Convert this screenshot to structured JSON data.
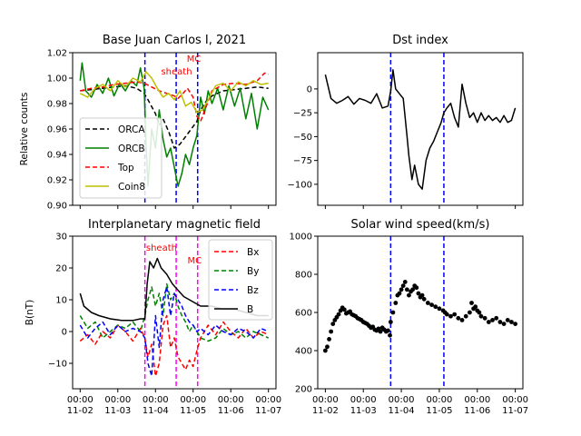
{
  "figure": {
    "x_tick_labels": [
      [
        "00:00",
        "11-02"
      ],
      [
        "00:00",
        "11-03"
      ],
      [
        "00:00",
        "11-04"
      ],
      [
        "00:00",
        "11-05"
      ],
      [
        "00:00",
        "11-06"
      ],
      [
        "00:00",
        "11-07"
      ]
    ],
    "x_range": [
      -0.2,
      5.2
    ],
    "colors": {
      "orca": "#000000",
      "orcb": "#008000",
      "top": "#ff0000",
      "coin8": "#bfbf00",
      "bx": "#ff0000",
      "by": "#008000",
      "bz": "#0000ff",
      "b": "#000000",
      "event_blue": "#0000ff",
      "event_magenta": "#ff00ff"
    }
  },
  "chart_data": [
    {
      "id": "cosmic",
      "type": "line",
      "title": "Base Juan Carlos I, 2021",
      "ylabel": "Relative counts",
      "ylim": [
        0.9,
        1.02
      ],
      "yticks": [
        "0.90",
        "0.92",
        "0.94",
        "0.96",
        "0.98",
        "1.00",
        "1.02"
      ],
      "yticks_values": [
        0.9,
        0.92,
        0.94,
        0.96,
        0.98,
        1.0,
        1.02
      ],
      "vlines": [
        1.72,
        2.55,
        3.12
      ],
      "annotations": [
        {
          "text": "sheath",
          "x": 2.15,
          "y": 1.003,
          "color": "#ff0000"
        },
        {
          "text": "MC",
          "x": 2.83,
          "y": 1.013,
          "color": "#ff0000"
        }
      ],
      "legend": {
        "position": "lower-left"
      },
      "series": [
        {
          "name": "ORCA",
          "key": "orca",
          "dash": "5,3",
          "x": [
            0,
            0.3,
            0.6,
            0.9,
            1.2,
            1.5,
            1.7,
            1.8,
            2.0,
            2.1,
            2.2,
            2.35,
            2.5,
            2.65,
            2.8,
            2.95,
            3.1,
            3.2,
            3.35,
            3.5,
            3.8,
            4.1,
            4.4,
            4.7,
            5.0
          ],
          "y": [
            0.99,
            0.991,
            0.992,
            0.993,
            0.994,
            0.992,
            0.988,
            0.983,
            0.972,
            0.963,
            0.968,
            0.958,
            0.945,
            0.948,
            0.954,
            0.96,
            0.966,
            0.975,
            0.982,
            0.986,
            0.99,
            0.991,
            0.992,
            0.993,
            0.992
          ]
        },
        {
          "name": "ORCB",
          "key": "orcb",
          "dash": "",
          "x": [
            0,
            0.05,
            0.15,
            0.3,
            0.45,
            0.6,
            0.75,
            0.9,
            1.05,
            1.2,
            1.35,
            1.5,
            1.6,
            1.7,
            1.75,
            1.8,
            1.9,
            2.0,
            2.1,
            2.2,
            2.3,
            2.4,
            2.5,
            2.6,
            2.7,
            2.8,
            2.9,
            3.0,
            3.1,
            3.2,
            3.3,
            3.4,
            3.5,
            3.65,
            3.8,
            3.95,
            4.1,
            4.25,
            4.4,
            4.55,
            4.7,
            4.85,
            5.0
          ],
          "y": [
            0.998,
            1.012,
            0.99,
            0.985,
            0.995,
            0.988,
            1.0,
            0.986,
            0.996,
            0.99,
            0.998,
            0.994,
            1.008,
            0.992,
            0.95,
            0.915,
            0.96,
            0.945,
            0.975,
            0.952,
            0.938,
            0.945,
            0.93,
            0.915,
            0.925,
            0.94,
            0.932,
            0.945,
            0.955,
            0.985,
            0.972,
            0.99,
            0.98,
            0.992,
            0.975,
            0.994,
            0.978,
            0.992,
            0.968,
            0.988,
            0.96,
            0.985,
            0.975
          ]
        },
        {
          "name": "Top",
          "key": "top",
          "dash": "5,3",
          "x": [
            0,
            0.3,
            0.6,
            0.9,
            1.2,
            1.5,
            1.7,
            1.9,
            2.1,
            2.3,
            2.5,
            2.6,
            2.7,
            2.85,
            3.0,
            3.1,
            3.2,
            3.35,
            3.5,
            3.8,
            4.1,
            4.4,
            4.7,
            4.9,
            5.0
          ],
          "y": [
            0.99,
            0.992,
            0.993,
            0.995,
            0.996,
            0.997,
            0.996,
            0.993,
            0.99,
            0.988,
            0.986,
            0.984,
            0.987,
            0.992,
            0.985,
            0.97,
            0.966,
            0.978,
            0.99,
            0.995,
            0.996,
            0.995,
            0.998,
            1.004,
            1.003
          ]
        },
        {
          "name": "Coin8",
          "key": "coin8",
          "dash": "",
          "x": [
            0,
            0.2,
            0.4,
            0.6,
            0.8,
            1.0,
            1.2,
            1.4,
            1.6,
            1.75,
            1.9,
            2.05,
            2.2,
            2.35,
            2.5,
            2.65,
            2.8,
            2.95,
            3.1,
            3.25,
            3.4,
            3.6,
            3.8,
            4.0,
            4.2,
            4.4,
            4.6,
            4.8,
            5.0
          ],
          "y": [
            0.988,
            0.985,
            0.992,
            0.995,
            0.99,
            0.998,
            0.993,
            1.0,
            0.997,
            1.005,
            1.0,
            0.992,
            0.985,
            0.988,
            0.983,
            0.99,
            0.978,
            0.981,
            0.973,
            0.975,
            0.983,
            0.994,
            0.996,
            0.99,
            0.997,
            0.994,
            0.998,
            0.995,
            0.996
          ]
        }
      ]
    },
    {
      "id": "dst",
      "type": "line",
      "title": "Dst index",
      "ylim": [
        -122,
        38
      ],
      "yticks": [
        "0",
        "−25",
        "−50",
        "−75",
        "−100"
      ],
      "yticks_values": [
        0,
        -25,
        -50,
        -75,
        -100
      ],
      "vlines": [
        1.72,
        3.12
      ],
      "series": [
        {
          "name": "",
          "key": "dst_line",
          "x": [
            0.0,
            0.15,
            0.3,
            0.45,
            0.6,
            0.75,
            0.9,
            1.05,
            1.2,
            1.35,
            1.5,
            1.65,
            1.72,
            1.78,
            1.85,
            1.95,
            2.05,
            2.15,
            2.2,
            2.28,
            2.35,
            2.45,
            2.55,
            2.65,
            2.75,
            2.85,
            2.95,
            3.05,
            3.12,
            3.2,
            3.3,
            3.4,
            3.5,
            3.6,
            3.7,
            3.8,
            3.9,
            4.0,
            4.1,
            4.2,
            4.3,
            4.4,
            4.5,
            4.6,
            4.7,
            4.8,
            4.9,
            5.0
          ],
          "y": [
            15,
            -10,
            -15,
            -12,
            -8,
            -16,
            -10,
            -12,
            -15,
            -5,
            -20,
            -18,
            -2,
            20,
            0,
            -5,
            -10,
            -50,
            -70,
            -95,
            -80,
            -100,
            -105,
            -75,
            -62,
            -55,
            -45,
            -35,
            -25,
            -20,
            -15,
            -30,
            -40,
            5,
            -15,
            -30,
            -25,
            -35,
            -25,
            -33,
            -28,
            -33,
            -30,
            -35,
            -28,
            -35,
            -33,
            -20
          ]
        }
      ]
    },
    {
      "id": "imf",
      "type": "line",
      "title": "Interplanetary magnetic field",
      "ylabel": "B(nT)",
      "ylim": [
        -18,
        30
      ],
      "yticks": [
        "30",
        "20",
        "10",
        "0",
        "−10"
      ],
      "yticks_values": [
        30,
        20,
        10,
        0,
        -10
      ],
      "vlines": [
        1.72,
        2.55,
        3.12
      ],
      "annotations": [
        {
          "text": "sheath",
          "x": 1.75,
          "y": 25.5,
          "color": "#ff0000"
        },
        {
          "text": "MC",
          "x": 2.85,
          "y": 21.5,
          "color": "#ff0000"
        }
      ],
      "legend": {
        "position": "top-right"
      },
      "series": [
        {
          "name": "Bx",
          "key": "bx",
          "dash": "5,3",
          "x": [
            0,
            0.2,
            0.4,
            0.6,
            0.8,
            1.0,
            1.2,
            1.4,
            1.6,
            1.72,
            1.8,
            1.9,
            2.0,
            2.1,
            2.2,
            2.3,
            2.4,
            2.5,
            2.6,
            2.7,
            2.8,
            2.9,
            3.0,
            3.1,
            3.2,
            3.4,
            3.6,
            3.8,
            4.0,
            4.2,
            4.4,
            4.6,
            4.8,
            5.0
          ],
          "y": [
            -3,
            -1,
            -4,
            0,
            -2,
            2,
            0,
            -3,
            1,
            -2,
            -8,
            -4,
            -14,
            -10,
            2,
            5,
            -5,
            -2,
            -8,
            -10,
            -12,
            -9,
            -11,
            -6,
            -2,
            2,
            -1,
            3,
            0,
            -2,
            1,
            -2,
            0,
            -1
          ]
        },
        {
          "name": "By",
          "key": "by",
          "dash": "5,3",
          "x": [
            0,
            0.2,
            0.4,
            0.6,
            0.8,
            1.0,
            1.2,
            1.4,
            1.6,
            1.72,
            1.8,
            1.9,
            2.0,
            2.1,
            2.2,
            2.3,
            2.4,
            2.5,
            2.6,
            2.7,
            2.8,
            2.9,
            3.0,
            3.1,
            3.2,
            3.4,
            3.6,
            3.8,
            4.0,
            4.2,
            4.4,
            4.6,
            4.8,
            5.0
          ],
          "y": [
            5,
            1,
            3,
            -2,
            0,
            2,
            1,
            3,
            0,
            5,
            10,
            14,
            8,
            12,
            5,
            15,
            10,
            12,
            8,
            5,
            3,
            0,
            2,
            0,
            -2,
            -3,
            -2,
            1,
            -1,
            0,
            -2,
            0,
            -1,
            -2
          ]
        },
        {
          "name": "Bz",
          "key": "bz",
          "dash": "5,3",
          "x": [
            0,
            0.2,
            0.4,
            0.6,
            0.8,
            1.0,
            1.2,
            1.4,
            1.6,
            1.72,
            1.8,
            1.9,
            2.0,
            2.1,
            2.2,
            2.3,
            2.4,
            2.5,
            2.6,
            2.7,
            2.8,
            2.9,
            3.0,
            3.1,
            3.2,
            3.4,
            3.6,
            3.8,
            4.0,
            4.2,
            4.4,
            4.6,
            4.8,
            5.0
          ],
          "y": [
            2,
            -2,
            1,
            3,
            -1,
            2,
            0,
            1,
            0,
            -2,
            -10,
            -14,
            5,
            -5,
            10,
            14,
            5,
            12,
            10,
            8,
            5,
            3,
            2,
            0,
            1,
            -1,
            2,
            0,
            -1,
            1,
            0,
            -2,
            1,
            0
          ]
        },
        {
          "name": "B",
          "key": "b",
          "dash": "",
          "x": [
            0,
            0.1,
            0.3,
            0.5,
            0.8,
            1.1,
            1.4,
            1.6,
            1.72,
            1.78,
            1.85,
            1.95,
            2.05,
            2.15,
            2.3,
            2.45,
            2.6,
            2.75,
            2.9,
            3.05,
            3.2,
            3.5,
            3.8,
            4.1,
            4.4,
            4.7,
            5.0
          ],
          "y": [
            12,
            8,
            6,
            5,
            4,
            3.5,
            3.5,
            4,
            4,
            15,
            22,
            20,
            23,
            20,
            18,
            15,
            13,
            11,
            10,
            9,
            8,
            8,
            7,
            7,
            6,
            5,
            5
          ]
        }
      ]
    },
    {
      "id": "sw",
      "type": "scatter",
      "title": "Solar wind speed(km/s)",
      "ylim": [
        200,
        1000
      ],
      "yticks": [
        "1000",
        "800",
        "600",
        "400",
        "200"
      ],
      "yticks_values": [
        1000,
        800,
        600,
        400,
        200
      ],
      "vlines": [
        1.72,
        3.12
      ],
      "series": [
        {
          "name": "",
          "key": "speed",
          "x": [
            0.0,
            0.05,
            0.1,
            0.15,
            0.2,
            0.25,
            0.3,
            0.35,
            0.4,
            0.45,
            0.5,
            0.55,
            0.6,
            0.65,
            0.7,
            0.75,
            0.8,
            0.85,
            0.9,
            0.95,
            1.0,
            1.05,
            1.1,
            1.15,
            1.2,
            1.25,
            1.3,
            1.35,
            1.4,
            1.45,
            1.5,
            1.55,
            1.6,
            1.65,
            1.7,
            1.72,
            1.78,
            1.85,
            1.9,
            1.95,
            2.0,
            2.05,
            2.1,
            2.15,
            2.2,
            2.25,
            2.3,
            2.35,
            2.4,
            2.45,
            2.5,
            2.55,
            2.6,
            2.7,
            2.8,
            2.9,
            3.0,
            3.1,
            3.15,
            3.2,
            3.3,
            3.4,
            3.5,
            3.6,
            3.7,
            3.8,
            3.85,
            3.9,
            3.95,
            4.0,
            4.05,
            4.1,
            4.2,
            4.3,
            4.4,
            4.5,
            4.6,
            4.7,
            4.8,
            4.9,
            5.0
          ],
          "y": [
            400,
            420,
            460,
            500,
            540,
            560,
            575,
            590,
            610,
            625,
            615,
            595,
            600,
            605,
            590,
            585,
            580,
            570,
            565,
            560,
            550,
            545,
            540,
            530,
            520,
            525,
            510,
            505,
            515,
            500,
            520,
            510,
            500,
            505,
            480,
            550,
            600,
            650,
            690,
            700,
            720,
            740,
            760,
            720,
            690,
            710,
            720,
            740,
            730,
            700,
            680,
            690,
            670,
            650,
            640,
            630,
            620,
            610,
            600,
            590,
            580,
            590,
            570,
            560,
            580,
            600,
            650,
            620,
            630,
            610,
            600,
            580,
            570,
            550,
            560,
            570,
            550,
            540,
            560,
            550,
            540
          ]
        }
      ]
    }
  ]
}
